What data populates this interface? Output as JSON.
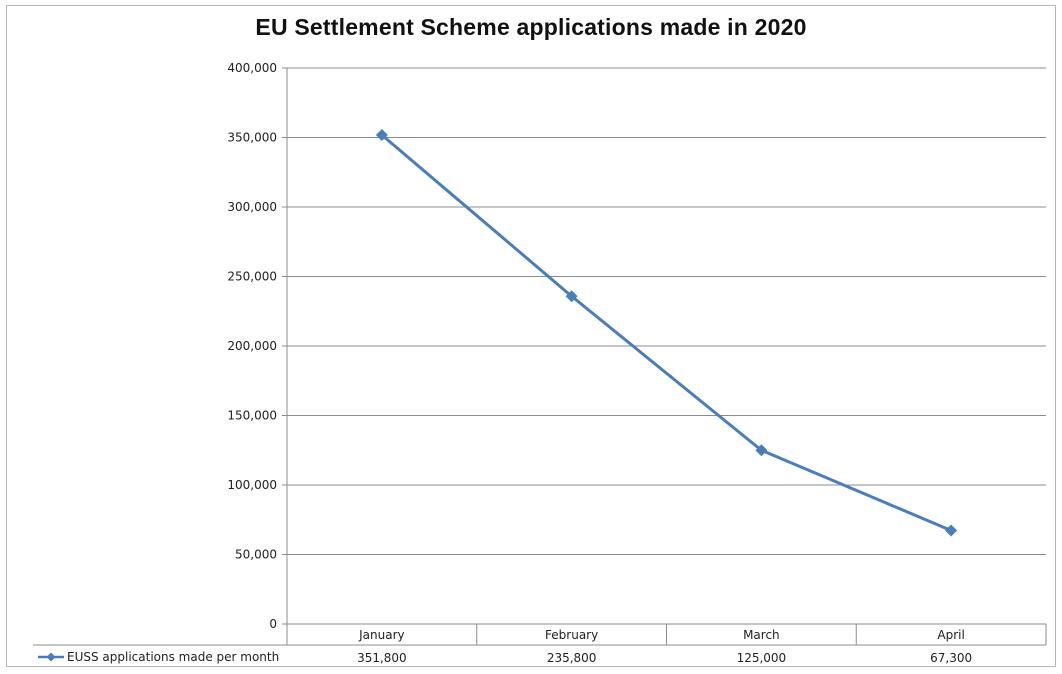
{
  "chart_data": {
    "type": "line",
    "title": "EU Settlement Scheme applications made in 2020",
    "categories": [
      "January",
      "February",
      "March",
      "April"
    ],
    "series": [
      {
        "name": "EUSS applications made per month",
        "values": [
          351800,
          235800,
          125000,
          67300
        ],
        "display_values": [
          "351,800",
          "235,800",
          "125,000",
          "67,300"
        ],
        "color": "#4a7ebb",
        "marker": "diamond"
      }
    ],
    "ylim": [
      0,
      400000
    ],
    "y_ticks": [
      "0",
      "50,000",
      "100,000",
      "150,000",
      "200,000",
      "250,000",
      "300,000",
      "350,000",
      "400,000"
    ],
    "grid": true,
    "legend": "data-table-row"
  }
}
